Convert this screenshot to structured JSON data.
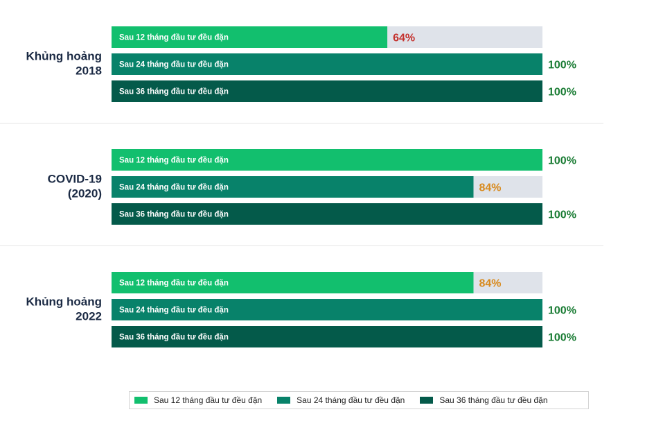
{
  "chart_data": {
    "type": "bar",
    "orientation": "horizontal",
    "unit": "%",
    "xlim": [
      0,
      100
    ],
    "grid": false,
    "legend_position": "bottom",
    "groups": [
      {
        "label_lines": [
          "Khủng hoảng",
          "2018"
        ],
        "bars": [
          {
            "series": 0,
            "label": "Sau 12 tháng đầu tư đều đặn",
            "value": 64,
            "value_label": "64%"
          },
          {
            "series": 1,
            "label": "Sau 24 tháng đầu tư đều đặn",
            "value": 100,
            "value_label": "100%"
          },
          {
            "series": 2,
            "label": "Sau 36 tháng đầu tư đều đặn",
            "value": 100,
            "value_label": "100%"
          }
        ]
      },
      {
        "label_lines": [
          "COVID-19",
          "(2020)"
        ],
        "bars": [
          {
            "series": 0,
            "label": "Sau 12 tháng đầu tư đều đặn",
            "value": 100,
            "value_label": "100%"
          },
          {
            "series": 1,
            "label": "Sau 24 tháng đầu tư đều đặn",
            "value": 84,
            "value_label": "84%"
          },
          {
            "series": 2,
            "label": "Sau 36 tháng đầu tư đều đặn",
            "value": 100,
            "value_label": "100%"
          }
        ]
      },
      {
        "label_lines": [
          "Khủng hoảng",
          "2022"
        ],
        "bars": [
          {
            "series": 0,
            "label": "Sau 12 tháng đầu tư đều đặn",
            "value": 84,
            "value_label": "84%"
          },
          {
            "series": 1,
            "label": "Sau 24 tháng đầu tư đều đặn",
            "value": 100,
            "value_label": "100%"
          },
          {
            "series": 2,
            "label": "Sau 36 tháng đầu tư đều đặn",
            "value": 100,
            "value_label": "100%"
          }
        ]
      }
    ],
    "series": [
      {
        "name": "Sau 12 tháng đầu tư đều đặn",
        "color": "#12bf6e"
      },
      {
        "name": "Sau 24 tháng đầu tư đều đặn",
        "color": "#08826a"
      },
      {
        "name": "Sau 36 tháng đầu tư đều đặn",
        "color": "#045a4a"
      }
    ],
    "colors": {
      "track": "#dfe3ea",
      "group_label": "#1b2a44",
      "bar_text": "#ffffff",
      "value_full": "#1a7c34",
      "value_64": "#c4302c",
      "value_84": "#d88a1e",
      "separator": "#e6e6e6"
    }
  }
}
